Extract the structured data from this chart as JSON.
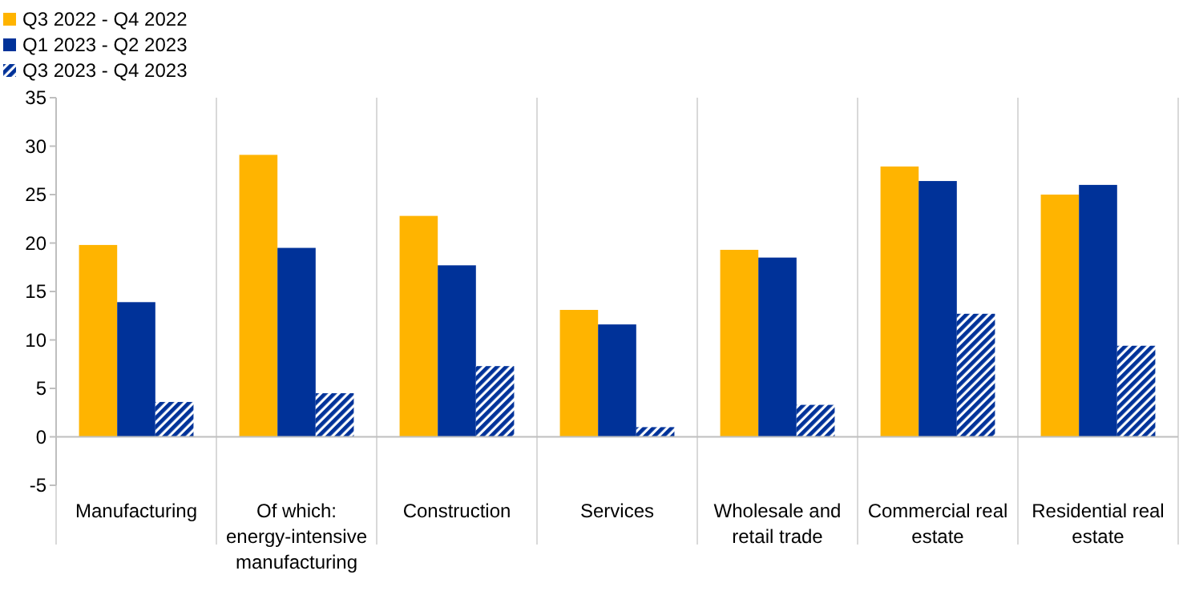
{
  "chart_data": {
    "type": "bar",
    "categories": [
      "Manufacturing",
      "Of which: energy-intensive manufacturing",
      "Construction",
      "Services",
      "Wholesale and retail trade",
      "Commercial real estate",
      "Residential real estate"
    ],
    "series": [
      {
        "name": "Q3 2022 - Q4 2022",
        "color": "#ffb400",
        "values": [
          19.8,
          29.1,
          22.8,
          13.1,
          19.3,
          27.9,
          25.0
        ]
      },
      {
        "name": "Q1 2023 - Q2 2023",
        "color": "#003299",
        "values": [
          13.9,
          19.5,
          17.7,
          11.6,
          18.5,
          26.4,
          26.0
        ]
      },
      {
        "name": "Q3 2023 - Q4 2023",
        "color": "#003299",
        "values": [
          3.6,
          4.5,
          7.3,
          1.0,
          3.3,
          12.7,
          9.4
        ]
      }
    ],
    "ylim": [
      -5,
      35
    ],
    "yticks": [
      -5,
      0,
      5,
      10,
      15,
      20,
      25,
      30,
      35
    ],
    "grid": "x",
    "legend": "top left"
  }
}
